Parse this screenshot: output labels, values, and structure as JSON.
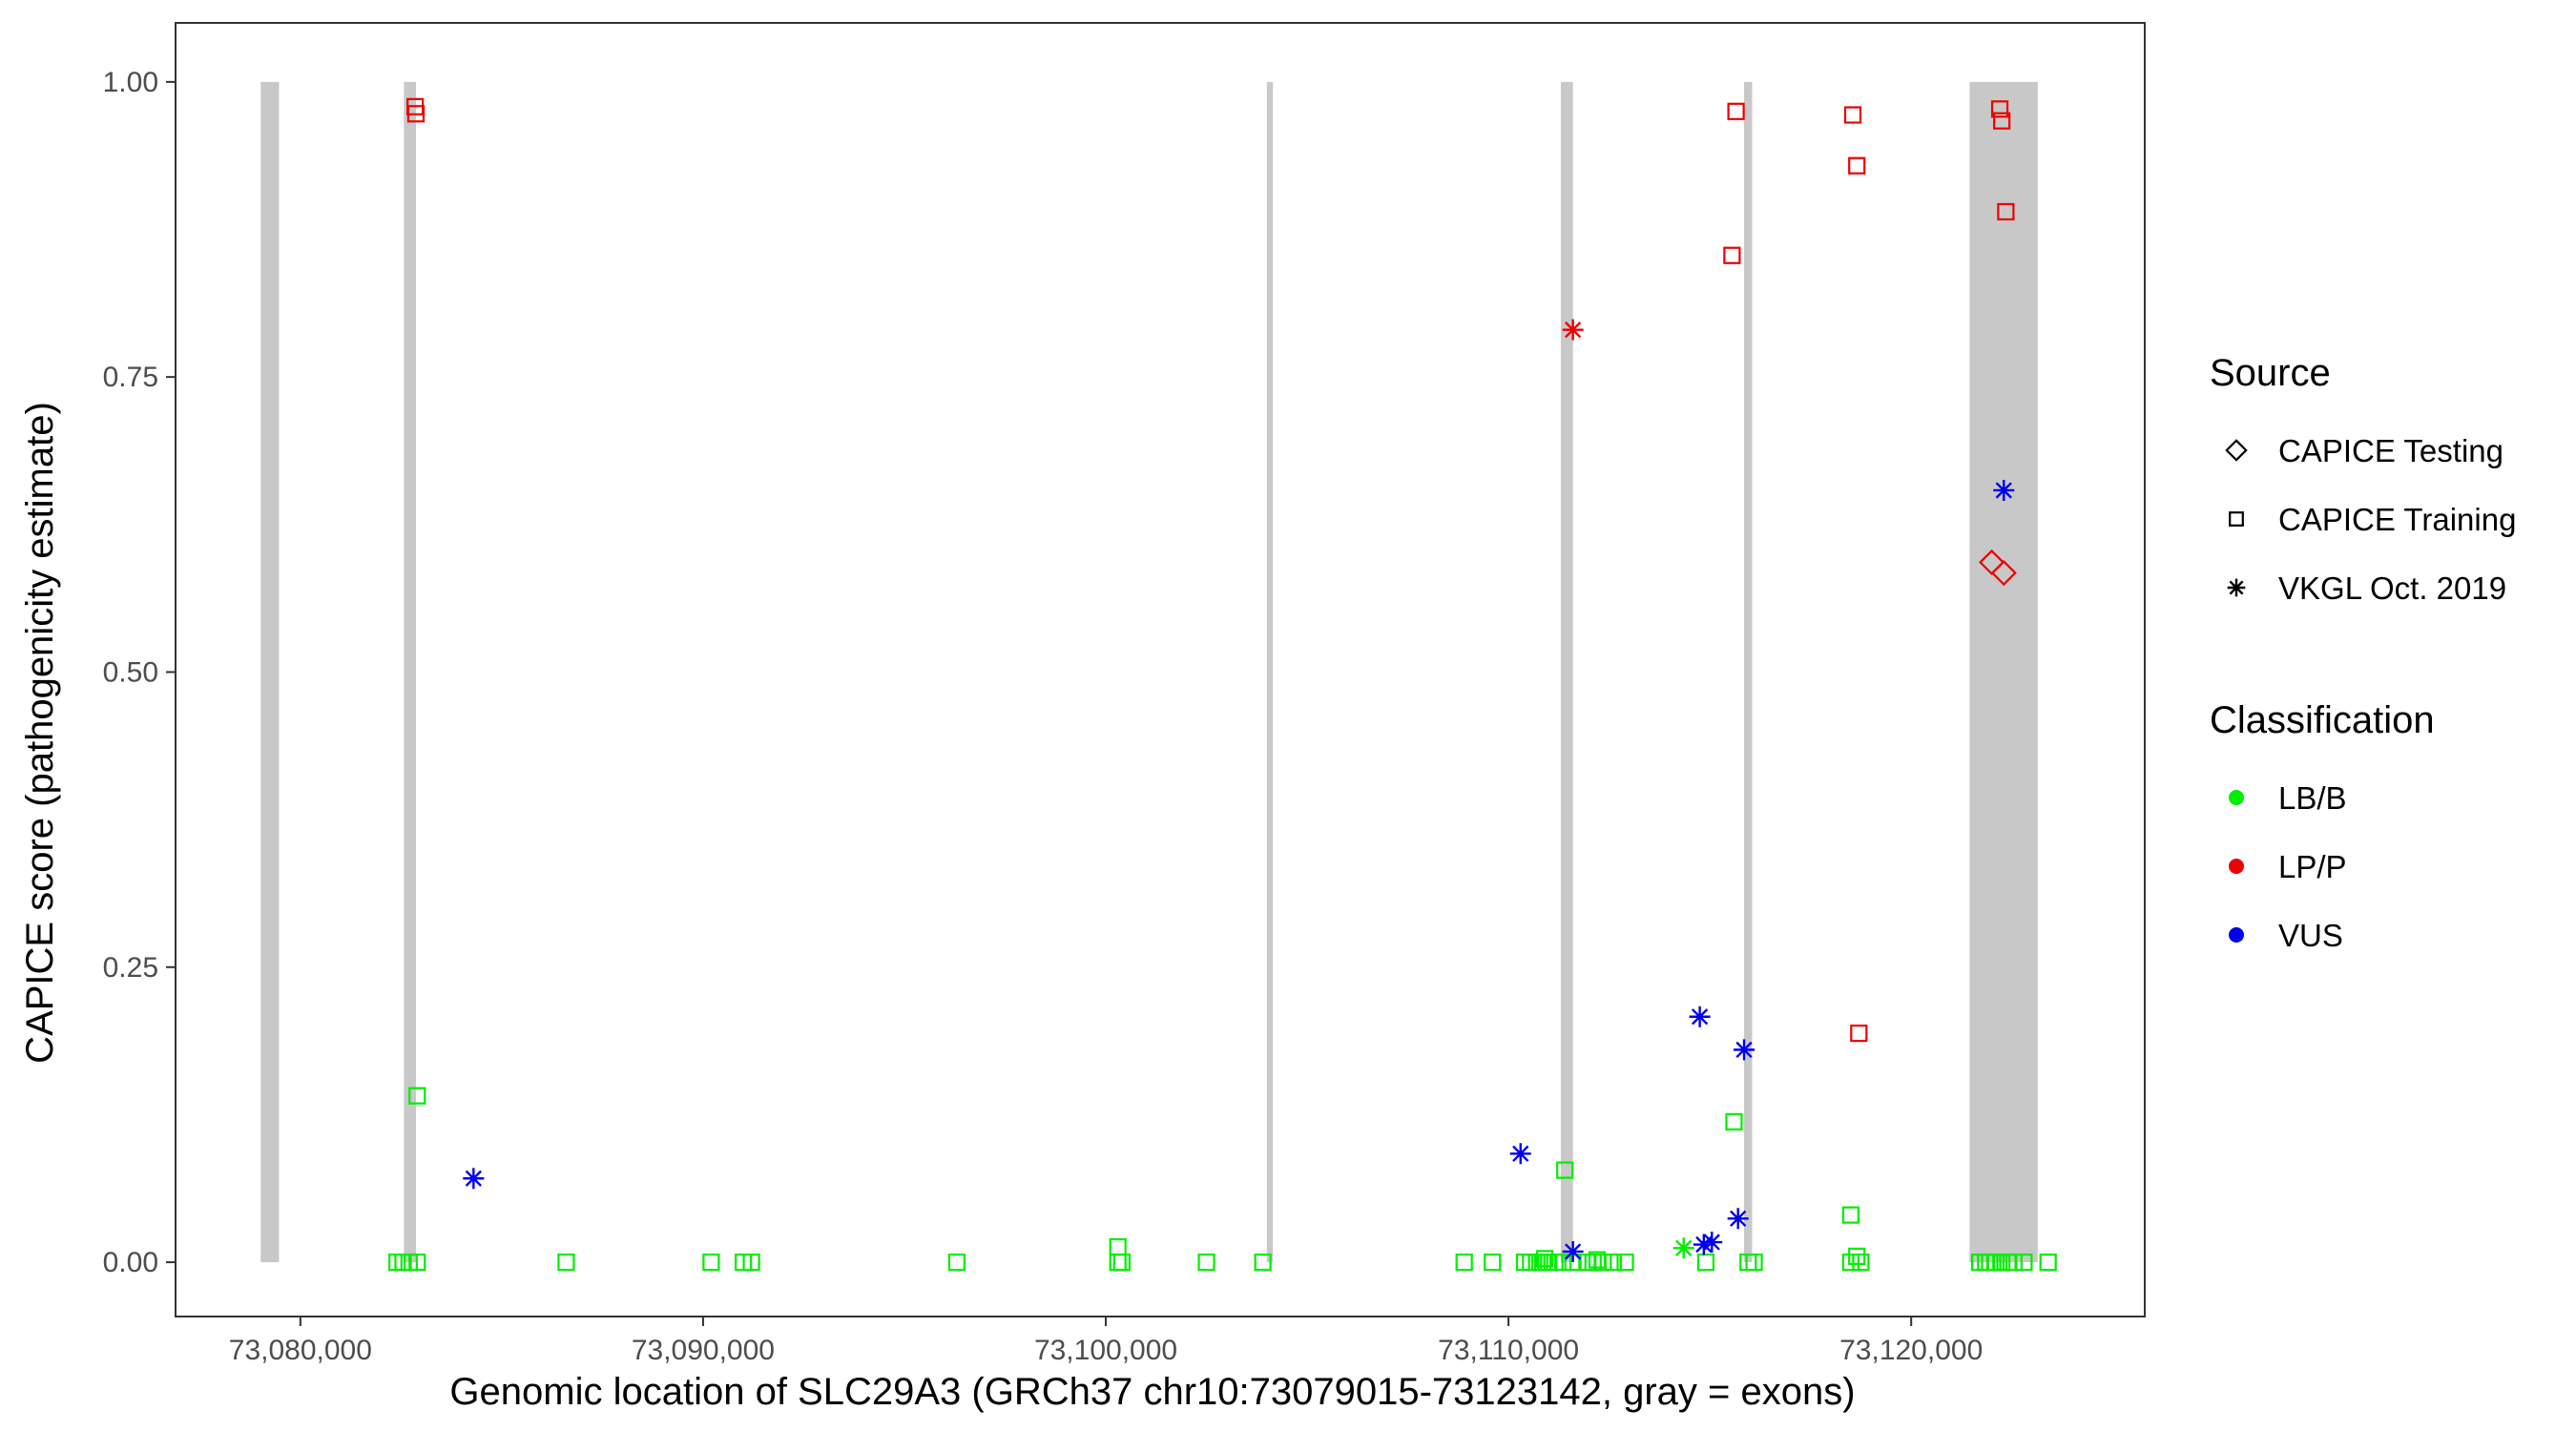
{
  "chart_data": {
    "type": "scatter",
    "title": "",
    "xlabel": "Genomic location of SLC29A3 (GRCh37 chr10:73079015-73123142, gray = exons)",
    "ylabel": "CAPICE score (pathogenicity estimate)",
    "xlim": [
      73076900,
      73125800
    ],
    "ylim": [
      -0.046,
      1.05
    ],
    "x_ticks": [
      73080000,
      73090000,
      73100000,
      73110000,
      73120000
    ],
    "x_tick_labels": [
      "73,080,000",
      "73,090,000",
      "73,100,000",
      "73,110,000",
      "73,120,000"
    ],
    "y_ticks": [
      0,
      0.25,
      0.5,
      0.75,
      1.0
    ],
    "y_tick_labels": [
      "0.00",
      "0.25",
      "0.50",
      "0.75",
      "1.00"
    ],
    "grid": false,
    "exons": [
      [
        73079015,
        73079470
      ],
      [
        73082570,
        73082870
      ],
      [
        73104000,
        73104150
      ],
      [
        73111300,
        73111600
      ],
      [
        73115850,
        73116050
      ],
      [
        73121450,
        73123142
      ]
    ],
    "exon_color": "#c8c8c8",
    "colors": {
      "LB/B": "#00ee00",
      "LP/P": "#ee0000",
      "VUS": "#0000ee"
    },
    "legends": [
      {
        "title": "Source",
        "position": "right",
        "items": [
          {
            "label": "CAPICE Testing",
            "shape": "diamond"
          },
          {
            "label": "CAPICE Training",
            "shape": "square"
          },
          {
            "label": "VKGL Oct. 2019",
            "shape": "star"
          }
        ]
      },
      {
        "title": "Classification",
        "position": "right",
        "items": [
          {
            "label": "LB/B",
            "shape": "dot",
            "color": "#00ee00"
          },
          {
            "label": "LP/P",
            "shape": "dot",
            "color": "#ee0000"
          },
          {
            "label": "VUS",
            "shape": "dot",
            "color": "#0000ee"
          }
        ]
      }
    ],
    "series": [
      {
        "name": "CAPICE Testing / LP/P",
        "shape": "diamond",
        "color": "#ee0000",
        "x": [
          73122000,
          73122300
        ],
        "y": [
          0.593,
          0.584
        ]
      },
      {
        "name": "CAPICE Training / LP/P",
        "shape": "square",
        "color": "#ee0000",
        "x": [
          73082850,
          73082870,
          73115650,
          73115550,
          73118550,
          73118650,
          73118700,
          73122200,
          73122250,
          73122350
        ],
        "y": [
          0.979,
          0.973,
          0.975,
          0.853,
          0.972,
          0.929,
          0.194,
          0.977,
          0.967,
          0.89
        ]
      },
      {
        "name": "CAPICE Training / LB/B",
        "shape": "square",
        "color": "#00ee00",
        "x": [
          73082400,
          73082550,
          73082700,
          73082900,
          73086600,
          73090200,
          73091000,
          73091200,
          73096300,
          73100300,
          73100400,
          73102500,
          73103900,
          73108900,
          73109600,
          73110400,
          73110550,
          73110700,
          73110850,
          73111000,
          73111150,
          73111350,
          73111600,
          73111950,
          73112100,
          73112350,
          73112600,
          73112900,
          73114900,
          73115950,
          73116100,
          73118500,
          73118750,
          73121700,
          73121850,
          73121950,
          73122100,
          73122250,
          73122400,
          73122550,
          73122800,
          73123400,
          73082900,
          73111400,
          73115600,
          73118500,
          73100300,
          73118650,
          73110900,
          73112200
        ],
        "y": [
          0,
          0,
          0,
          0,
          0,
          0,
          0,
          0,
          0,
          0,
          0,
          0,
          0,
          0,
          0,
          0,
          0,
          0,
          0,
          0,
          0,
          0,
          0,
          0,
          0,
          0,
          0,
          0,
          0,
          0,
          0,
          0,
          0,
          0,
          0,
          0,
          0,
          0,
          0,
          0,
          0,
          0,
          0.141,
          0.078,
          0.119,
          0.04,
          0.013,
          0.005,
          0.003,
          0.002
        ]
      },
      {
        "name": "VKGL Oct. 2019 / LP/P",
        "shape": "star",
        "color": "#ee0000",
        "x": [
          73111600
        ],
        "y": [
          0.79
        ]
      },
      {
        "name": "VKGL Oct. 2019 / VUS",
        "shape": "star",
        "color": "#0000ee",
        "x": [
          73084300,
          73110300,
          73111600,
          73114750,
          73114850,
          73115050,
          73115700,
          73115850,
          73122300
        ],
        "y": [
          0.071,
          0.092,
          0.009,
          0.208,
          0.015,
          0.017,
          0.037,
          0.18,
          0.654
        ]
      },
      {
        "name": "VKGL Oct. 2019 / LB/B",
        "shape": "star",
        "color": "#00ee00",
        "x": [
          73114350
        ],
        "y": [
          0.012
        ]
      }
    ]
  }
}
